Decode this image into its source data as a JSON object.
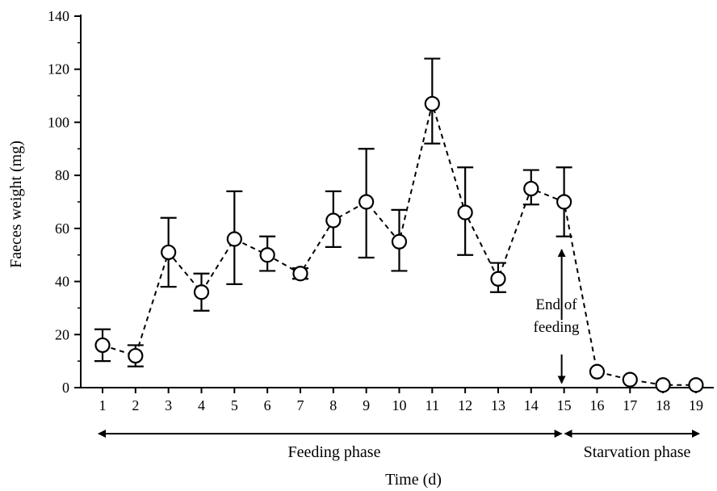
{
  "chart_data": {
    "type": "line",
    "xlabel": "Time (d)",
    "ylabel": "Faeces weight (mg)",
    "xlim": [
      1,
      19
    ],
    "ylim": [
      0,
      140
    ],
    "x_ticks": [
      1,
      2,
      3,
      4,
      5,
      6,
      7,
      8,
      9,
      10,
      11,
      12,
      13,
      14,
      15,
      16,
      17,
      18,
      19
    ],
    "y_ticks": [
      0,
      20,
      40,
      60,
      80,
      100,
      120,
      140
    ],
    "grid": false,
    "line_style": "dashed",
    "marker": "open-circle",
    "series": [
      {
        "x": [
          1,
          2,
          3,
          4,
          5,
          6,
          7,
          8,
          9,
          10,
          11,
          12,
          13,
          14,
          15,
          16,
          17,
          18,
          19
        ],
        "y": [
          16,
          12,
          51,
          36,
          56,
          50,
          43,
          63,
          70,
          55,
          107,
          66,
          41,
          75,
          70,
          6,
          3,
          1,
          1
        ],
        "error_low": [
          10,
          8,
          38,
          29,
          39,
          44,
          41,
          53,
          49,
          44,
          92,
          50,
          36,
          69,
          57,
          null,
          null,
          null,
          null
        ],
        "error_high": [
          22,
          16,
          64,
          43,
          74,
          57,
          45,
          74,
          90,
          67,
          124,
          83,
          47,
          82,
          83,
          null,
          null,
          null,
          null
        ]
      }
    ],
    "annotations": {
      "end_of_feeding": {
        "line1": "End of",
        "line2": "feeding",
        "x": 15,
        "arrow_from_y": 52,
        "arrow_to_y": 2
      },
      "phases": [
        {
          "label": "Feeding phase",
          "x_start": 1,
          "x_end": 15
        },
        {
          "label": "Starvation phase",
          "x_start": 15,
          "x_end": 19
        }
      ]
    }
  }
}
